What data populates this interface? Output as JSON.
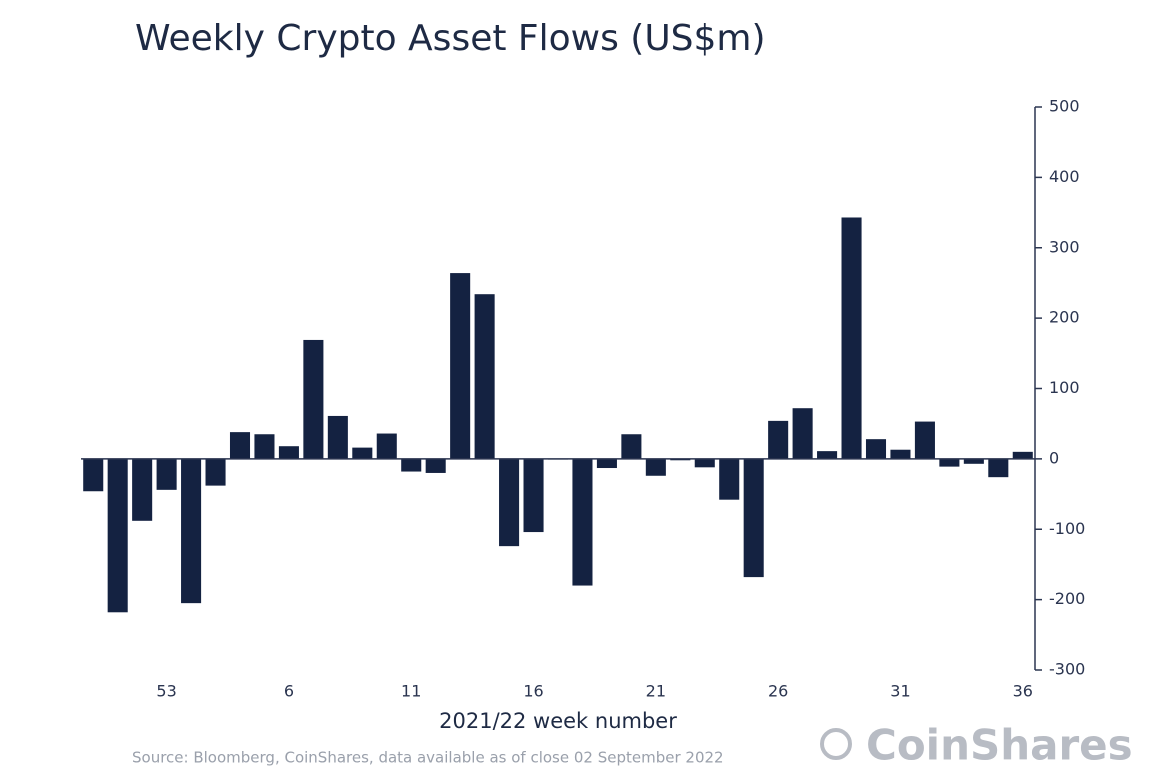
{
  "chart_data": {
    "type": "bar",
    "title": "Weekly Crypto Asset Flows (US$m)",
    "xlabel": "2021/22 week number",
    "source": "Source: Bloomberg, CoinShares, data available as of close 02 September 2022",
    "brand": "CoinShares",
    "categories": [
      null,
      null,
      null,
      "53",
      null,
      null,
      null,
      null,
      "6",
      null,
      null,
      null,
      null,
      "11",
      null,
      null,
      null,
      null,
      "16",
      null,
      null,
      null,
      null,
      "21",
      null,
      null,
      null,
      null,
      "26",
      null,
      null,
      null,
      null,
      "31",
      null,
      null,
      null,
      null,
      "36"
    ],
    "values": [
      -46,
      -218,
      -88,
      -44,
      -205,
      -38,
      38,
      35,
      18,
      169,
      61,
      16,
      36,
      -18,
      -20,
      264,
      234,
      -124,
      -104,
      -1,
      -180,
      -13,
      35,
      -24,
      -2,
      -12,
      -58,
      -168,
      54,
      72,
      11,
      343,
      28,
      13,
      53,
      -11,
      -7,
      -26,
      10
    ],
    "color": "#142241",
    "ylim": [
      -300,
      500
    ],
    "yticks": [
      -300,
      -200,
      -100,
      0,
      100,
      200,
      300,
      400,
      500
    ],
    "grid": false,
    "y_axis_side": "right"
  }
}
